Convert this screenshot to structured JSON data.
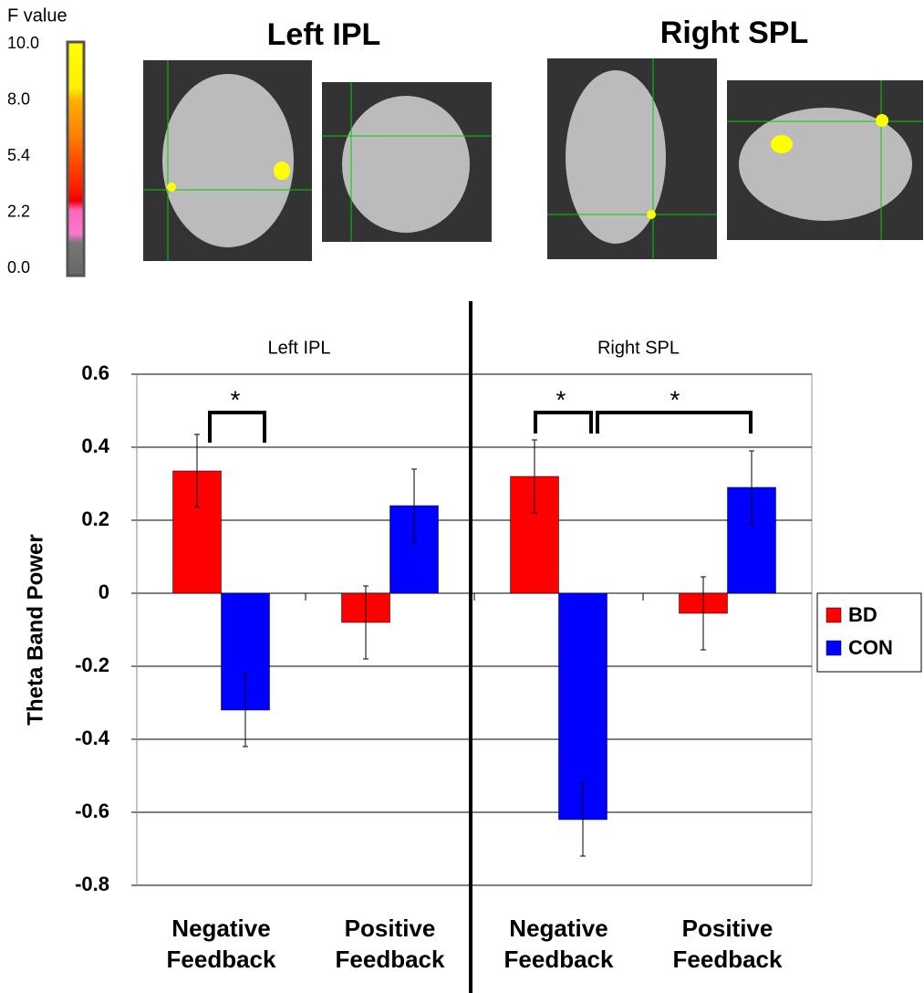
{
  "colorbar": {
    "title": "F value",
    "tick_labels": [
      "10.0",
      "8.0",
      "5.4",
      "2.2",
      "0.0"
    ]
  },
  "brain_images": [
    {
      "title": "Left IPL"
    },
    {
      "title": "Right SPL"
    }
  ],
  "chart_data": {
    "type": "bar",
    "groups": [
      "Left IPL",
      "Right SPL"
    ],
    "categories": [
      "Negative Feedback",
      "Positive Feedback",
      "Negative Feedback",
      "Positive Feedback"
    ],
    "y_label": "Theta Band Power",
    "series": [
      {
        "name": "BD",
        "color": "#ff0000",
        "values": [
          0.335,
          -0.08,
          0.32,
          -0.055
        ],
        "errors": [
          0.1,
          0.1,
          0.1,
          0.1
        ]
      },
      {
        "name": "CON",
        "color": "#0000ff",
        "values": [
          -0.32,
          0.24,
          -0.62,
          0.29
        ],
        "errors": [
          0.1,
          0.1,
          0.1,
          0.1
        ]
      }
    ],
    "ylim": [
      -0.8,
      0.6
    ],
    "yticks": [
      0.6,
      0.4,
      0.2,
      0,
      -0.2,
      -0.4,
      -0.6,
      -0.8
    ],
    "grid": true,
    "legend": "right",
    "annotations": [
      "*",
      "*",
      "*"
    ]
  }
}
